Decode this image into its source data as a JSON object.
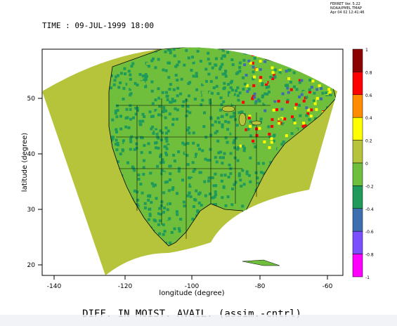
{
  "header": {
    "time_label": "TIME : 09-JUL-1999 18:00",
    "ferret_version": "FERRET Ver. 5.22",
    "org": "NOAA/PMEL TMAP",
    "date": "Apr 04 02 12:41:46"
  },
  "plot": {
    "title": "DIFF. IN MOIST. AVAIL. (assim.-cntrl)",
    "x_axis_label": "longitude (degree)",
    "y_axis_label": "latitude (degree)",
    "x_ticks": [
      "-140",
      "-120",
      "-100",
      "-80",
      "-60"
    ],
    "y_ticks": [
      "20",
      "30",
      "40",
      "50"
    ]
  },
  "colorbar": {
    "labels": [
      "1",
      "0.8",
      "0.6",
      "0.4",
      "0.2",
      "0",
      "-0.2",
      "-0.4",
      "-0.6",
      "-0.8",
      "-1"
    ],
    "bins": [
      {
        "range": "0.8 to 1",
        "color": "#8b0000"
      },
      {
        "range": "0.6 to 0.8",
        "color": "#ff0000"
      },
      {
        "range": "0.4 to 0.6",
        "color": "#ff8c00"
      },
      {
        "range": "0.2 to 0.4",
        "color": "#ffff00"
      },
      {
        "range": "0 to 0.2",
        "color": "#b5c43a"
      },
      {
        "range": "-0.2 to 0",
        "color": "#6fbe3c"
      },
      {
        "range": "-0.4 to -0.2",
        "color": "#1e9a5a"
      },
      {
        "range": "-0.6 to -0.4",
        "color": "#3d6fb0"
      },
      {
        "range": "-0.8 to -0.6",
        "color": "#7b4fff"
      },
      {
        "range": "-1 to -0.8",
        "color": "#ff00ff"
      }
    ]
  }
}
